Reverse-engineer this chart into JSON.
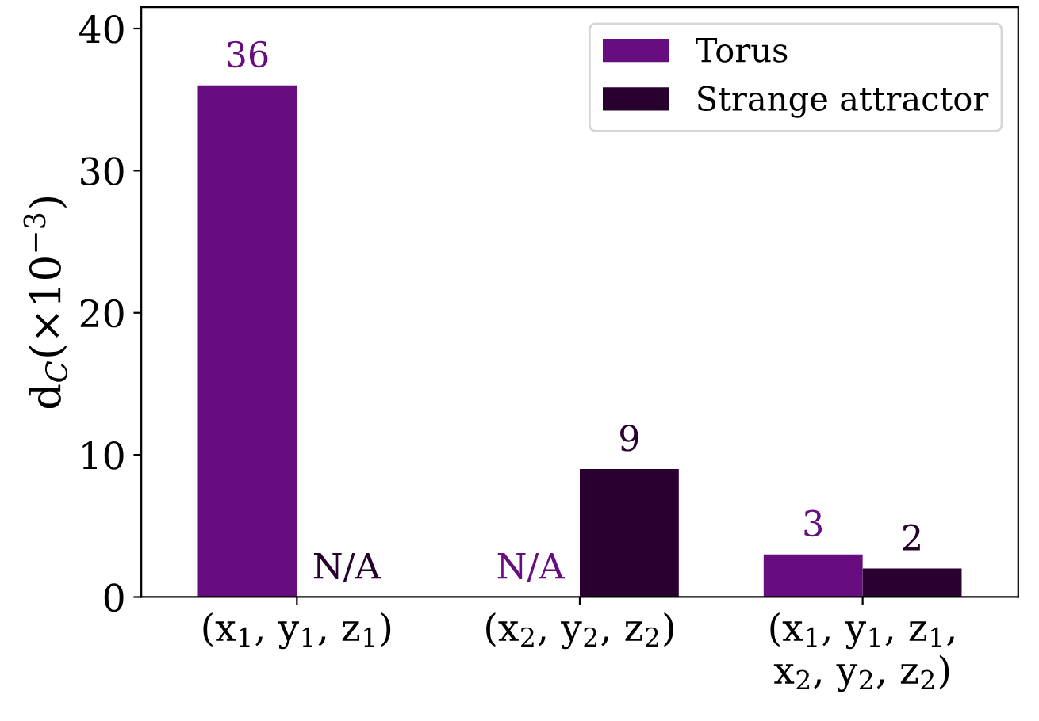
{
  "chart_data": {
    "type": "bar",
    "categories": [
      "(x$_{1}$, y$_{1}$, z$_{1}$)",
      "(x$_{2}$, y$_{2}$, z$_{2}$)",
      "(x$_{1}$, y$_{1}$, z$_{1}$,\nx$_{2}$, y$_{2}$, z$_{2}$)"
    ],
    "series": [
      {
        "name": "Torus",
        "color": "#670d80",
        "values": [
          36,
          null,
          3
        ],
        "value_labels": [
          "36",
          "N/A",
          "3"
        ]
      },
      {
        "name": "Strange attractor",
        "color": "#28012f",
        "values": [
          null,
          9,
          2
        ],
        "value_labels": [
          "N/A",
          "9",
          "2"
        ]
      }
    ],
    "ylabel": "d$_{C}$(×10$^{−3}$)",
    "ylim": [
      0,
      41.5
    ],
    "yticks": [
      0,
      10,
      20,
      30,
      40
    ],
    "legend": "top right",
    "grid": false
  }
}
